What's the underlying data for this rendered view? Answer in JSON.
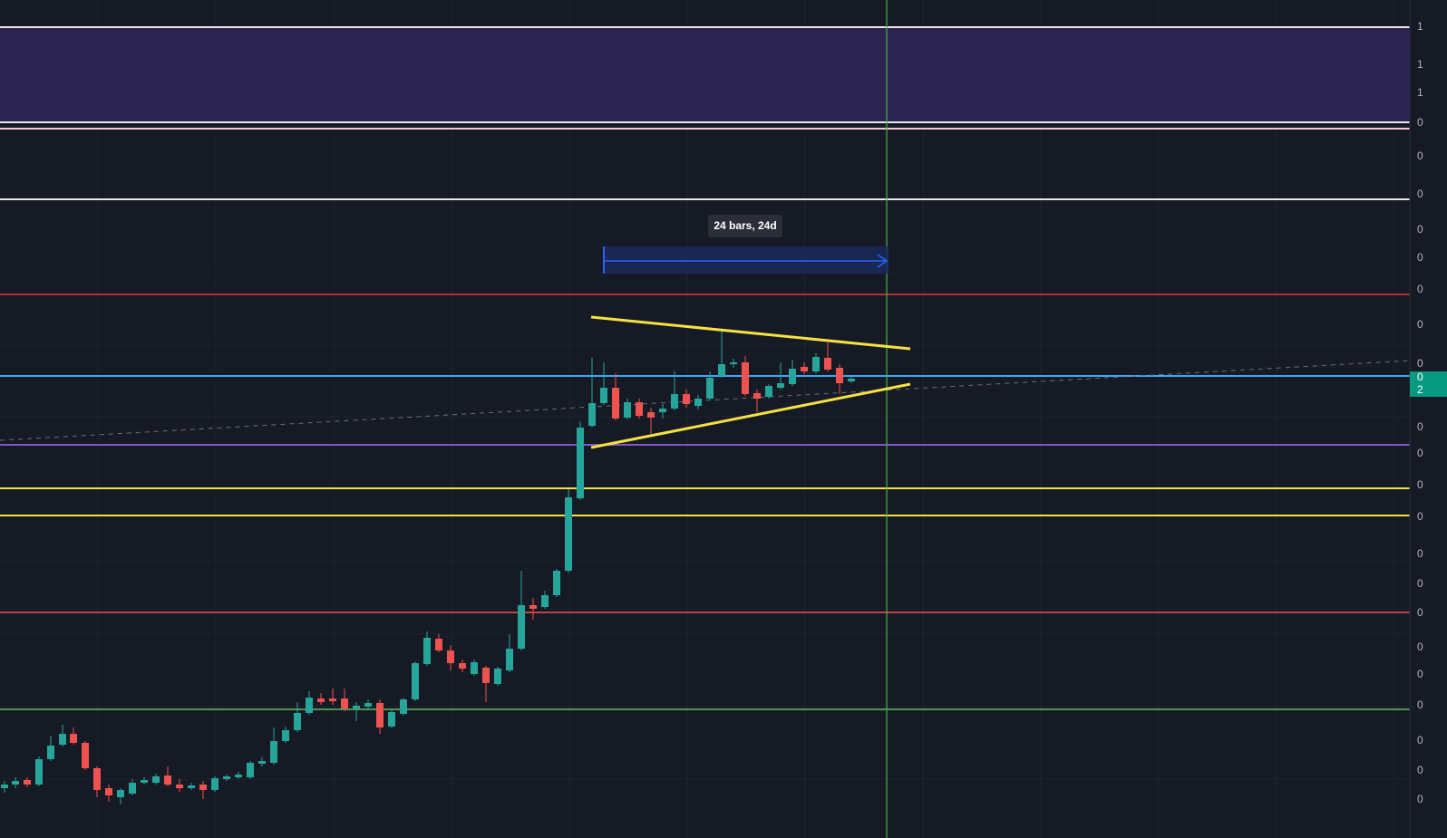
{
  "measure_label": "24 bars, 24d",
  "price_axis": {
    "labels": [
      "1",
      "1",
      "1",
      "0",
      "0",
      "0",
      "0",
      "0",
      "0",
      "0",
      "0",
      "0",
      "0",
      "0",
      "0",
      "0",
      "0",
      "0",
      "0",
      "0",
      "0",
      "0",
      "0",
      "0"
    ]
  },
  "price_badge": [
    "0",
    "2"
  ]
}
